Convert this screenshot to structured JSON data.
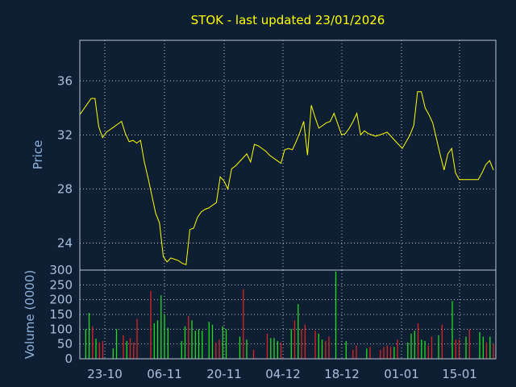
{
  "chart_data": [
    {
      "type": "line",
      "title": "STOK - last updated 23/01/2026",
      "ylabel": "Price",
      "ylim": [
        22,
        39
      ],
      "yticks": [
        24,
        28,
        32,
        36
      ],
      "grid": true,
      "series": [
        {
          "color": "#ffff00",
          "values": [
            33.5,
            33.9,
            34.3,
            34.7,
            34.7,
            32.6,
            31.8,
            32.2,
            32.4,
            32.6,
            32.8,
            33.0,
            32.1,
            31.5,
            31.6,
            31.4,
            31.6,
            30.0,
            28.8,
            27.5,
            26.2,
            25.5,
            23.0,
            22.6,
            22.9,
            22.8,
            22.7,
            22.5,
            22.4,
            25.0,
            25.1,
            25.9,
            26.3,
            26.5,
            26.6,
            26.8,
            27.0,
            28.9,
            28.6,
            28.0,
            29.5,
            29.7,
            30.0,
            30.3,
            30.6,
            30.0,
            31.3,
            31.2,
            31.0,
            30.8,
            30.5,
            30.3,
            30.1,
            29.9,
            30.9,
            31.0,
            30.9,
            31.5,
            32.2,
            33.0,
            30.5,
            34.2,
            33.3,
            32.5,
            32.7,
            32.9,
            33.0,
            33.6,
            32.8,
            32.0,
            32.1,
            32.5,
            33.0,
            33.6,
            32.0,
            32.3,
            32.1,
            32.0,
            31.9,
            32.0,
            32.1,
            32.2,
            31.9,
            31.6,
            31.3,
            31.0,
            31.5,
            32.0,
            32.7,
            35.2,
            35.2,
            34.0,
            33.5,
            32.9,
            31.7,
            30.5,
            29.4,
            30.6,
            31.0,
            29.2,
            28.7,
            28.7,
            28.7,
            28.7,
            28.7,
            28.7,
            29.2,
            29.8,
            30.1,
            29.4
          ]
        }
      ]
    },
    {
      "type": "bar",
      "ylabel": "Volume (0000)",
      "ylim": [
        0,
        300
      ],
      "yticks": [
        0,
        50,
        100,
        150,
        200,
        250,
        300
      ],
      "grid": true,
      "xticks": [
        "23-10",
        "06-11",
        "20-11",
        "04-12",
        "18-12",
        "01-01",
        "15-01"
      ],
      "up_color": "#22dd22",
      "down_color": "#dd2222",
      "values": [
        0,
        100,
        155,
        110,
        68,
        55,
        60,
        0,
        0,
        35,
        100,
        0,
        80,
        60,
        70,
        55,
        135,
        0,
        0,
        0,
        230,
        120,
        130,
        215,
        150,
        105,
        0,
        0,
        0,
        60,
        110,
        145,
        130,
        95,
        100,
        95,
        0,
        125,
        115,
        55,
        65,
        110,
        100,
        0,
        0,
        0,
        75,
        235,
        65,
        0,
        30,
        0,
        0,
        0,
        85,
        70,
        70,
        60,
        55,
        0,
        0,
        100,
        130,
        185,
        100,
        115,
        0,
        0,
        95,
        85,
        65,
        60,
        75,
        0,
        295,
        0,
        0,
        60,
        0,
        30,
        45,
        0,
        0,
        35,
        40,
        0,
        0,
        30,
        40,
        45,
        40,
        40,
        65,
        0,
        0,
        55,
        85,
        95,
        120,
        65,
        60,
        45,
        75,
        0,
        80,
        115,
        0,
        0,
        195,
        65,
        65,
        0,
        75,
        100,
        0,
        0,
        90,
        75,
        55,
        75,
        50
      ],
      "directions": [
        1,
        1,
        1,
        0,
        1,
        0,
        0,
        1,
        1,
        1,
        1,
        0,
        0,
        1,
        0,
        0,
        0,
        1,
        1,
        1,
        0,
        1,
        1,
        1,
        1,
        1,
        1,
        1,
        1,
        1,
        1,
        0,
        1,
        1,
        1,
        1,
        1,
        1,
        1,
        0,
        0,
        1,
        1,
        1,
        1,
        1,
        1,
        0,
        1,
        1,
        0,
        1,
        1,
        1,
        0,
        1,
        1,
        1,
        0,
        1,
        1,
        1,
        0,
        1,
        0,
        0,
        1,
        1,
        0,
        1,
        1,
        0,
        0,
        1,
        1,
        1,
        1,
        1,
        1,
        0,
        0,
        1,
        1,
        1,
        0,
        1,
        1,
        0,
        0,
        0,
        0,
        1,
        0,
        1,
        1,
        1,
        1,
        1,
        0,
        1,
        1,
        0,
        0,
        1,
        1,
        0,
        1,
        1,
        1,
        0,
        0,
        1,
        1,
        0,
        1,
        1,
        1,
        1,
        0,
        1,
        0
      ]
    }
  ]
}
